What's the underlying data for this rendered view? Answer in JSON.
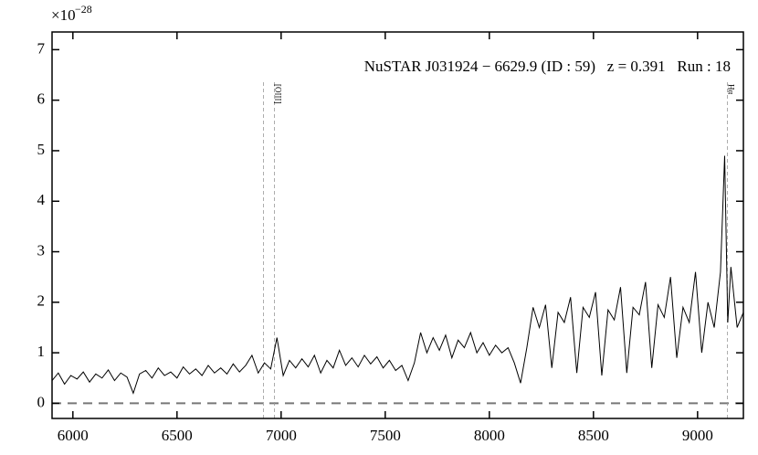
{
  "chart_data": {
    "type": "line",
    "title": "NuSTAR J031924 − 6629.9 (ID : 59)   z = 0.391   Run : 18",
    "y_scale_label": "×10",
    "y_scale_exponent": "−28",
    "xlim": [
      5900,
      9220
    ],
    "ylim": [
      -0.3,
      7.35
    ],
    "xticks": [
      6000,
      6500,
      7000,
      7500,
      8000,
      8500,
      9000
    ],
    "yticks": [
      0,
      1,
      2,
      3,
      4,
      5,
      6,
      7
    ],
    "zero_line": true,
    "reference_lines": [
      {
        "x": 6915
      },
      {
        "x": 6968,
        "label": "[OIII]"
      },
      {
        "x": 9143,
        "label": "Hα"
      }
    ],
    "x": [
      5900,
      5930,
      5960,
      5990,
      6020,
      6050,
      6080,
      6110,
      6140,
      6170,
      6200,
      6230,
      6260,
      6290,
      6320,
      6350,
      6380,
      6410,
      6440,
      6470,
      6500,
      6530,
      6560,
      6590,
      6620,
      6650,
      6680,
      6710,
      6740,
      6770,
      6800,
      6830,
      6860,
      6890,
      6920,
      6950,
      6980,
      7010,
      7040,
      7070,
      7100,
      7130,
      7160,
      7190,
      7220,
      7250,
      7280,
      7310,
      7340,
      7370,
      7400,
      7430,
      7460,
      7490,
      7520,
      7550,
      7580,
      7610,
      7640,
      7670,
      7700,
      7730,
      7760,
      7790,
      7820,
      7850,
      7880,
      7910,
      7940,
      7970,
      8000,
      8030,
      8060,
      8090,
      8120,
      8150,
      8180,
      8210,
      8240,
      8270,
      8300,
      8330,
      8360,
      8390,
      8420,
      8450,
      8480,
      8510,
      8540,
      8570,
      8600,
      8630,
      8660,
      8690,
      8720,
      8750,
      8780,
      8810,
      8840,
      8870,
      8900,
      8930,
      8960,
      8990,
      9020,
      9050,
      9080,
      9110,
      9130,
      9145,
      9160,
      9190,
      9220
    ],
    "series": [
      {
        "color": "#000000",
        "values": [
          0.45,
          0.6,
          0.38,
          0.55,
          0.48,
          0.62,
          0.42,
          0.58,
          0.5,
          0.66,
          0.45,
          0.6,
          0.52,
          0.2,
          0.58,
          0.65,
          0.5,
          0.7,
          0.55,
          0.62,
          0.5,
          0.72,
          0.58,
          0.68,
          0.55,
          0.75,
          0.6,
          0.7,
          0.58,
          0.78,
          0.62,
          0.75,
          0.95,
          0.6,
          0.8,
          0.68,
          1.3,
          0.55,
          0.85,
          0.7,
          0.88,
          0.72,
          0.95,
          0.6,
          0.85,
          0.7,
          1.05,
          0.75,
          0.9,
          0.72,
          0.95,
          0.78,
          0.92,
          0.7,
          0.85,
          0.65,
          0.75,
          0.45,
          0.8,
          1.4,
          1.0,
          1.3,
          1.05,
          1.35,
          0.9,
          1.25,
          1.1,
          1.4,
          1.0,
          1.2,
          0.95,
          1.15,
          1.0,
          1.1,
          0.8,
          0.4,
          1.1,
          1.9,
          1.5,
          1.95,
          0.7,
          1.8,
          1.6,
          2.1,
          0.6,
          1.9,
          1.7,
          2.2,
          0.55,
          1.85,
          1.65,
          2.3,
          0.6,
          1.9,
          1.75,
          2.4,
          0.7,
          1.95,
          1.7,
          2.5,
          0.9,
          1.9,
          1.6,
          2.6,
          1.0,
          2.0,
          1.5,
          2.6,
          4.9,
          1.6,
          2.7,
          1.5,
          1.8
        ]
      }
    ]
  }
}
